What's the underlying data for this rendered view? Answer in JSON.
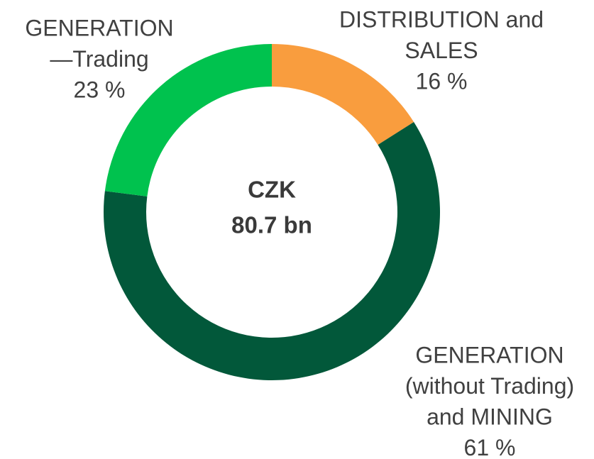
{
  "chart_data": {
    "type": "donut",
    "categories": [
      [
        "DISTRIBUTION and",
        "SALES"
      ],
      [
        "GENERATION",
        "(without Trading)",
        "and MINING"
      ],
      [
        "GENERATION",
        "—Trading"
      ]
    ],
    "values": [
      16,
      61,
      23
    ],
    "value_labels": [
      "16 %",
      "61 %",
      "23 %"
    ],
    "colors": [
      "#f99d3e",
      "#02583a",
      "#00c24e"
    ],
    "center_text": [
      "CZK",
      "80.7 bn"
    ]
  }
}
